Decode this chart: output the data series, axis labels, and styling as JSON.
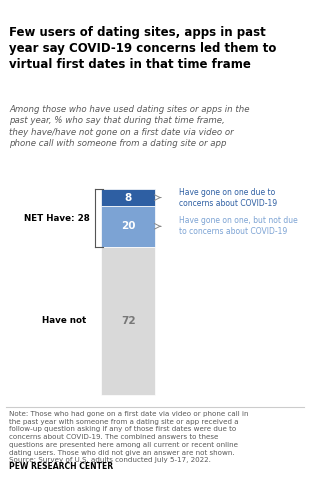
{
  "title": "Few users of dating sites, apps in past\nyear say COVID-19 concerns led them to\nvirtual first dates in that time frame",
  "subtitle": "Among those who have used dating sites or apps in the\npast year, % who say that during that time frame,\nthey have/have not gone on a first date via video or\nphone call with someone from a dating site or app",
  "bar_values": [
    8,
    20,
    72
  ],
  "bar_colors": [
    "#2e5fa3",
    "#7ca3d4",
    "#d9d9d9"
  ],
  "bar_labels": [
    "8",
    "20",
    "72"
  ],
  "legend_labels": [
    "Have gone on one due to\nconcerns about COVID-19",
    "Have gone on one, but not due\nto concerns about COVID-19"
  ],
  "legend_colors": [
    "#2e5fa3",
    "#7ca3d4"
  ],
  "net_label": "NET Have: 28",
  "have_not_label": "Have not",
  "note": "Note: Those who had gone on a first date via video or phone call in\nthe past year with someone from a dating site or app received a\nfollow-up question asking if any of those first dates were due to\nconcerns about COVID-19. The combined answers to these\nquestions are presented here among all current or recent online\ndating users. Those who did not give an answer are not shown.\nSource: Survey of U.S. adults conducted July 5-17, 2022.",
  "source_label": "PEW RESEARCH CENTER",
  "background_color": "#ffffff",
  "title_color": "#000000",
  "subtitle_color": "#595959",
  "note_color": "#595959"
}
